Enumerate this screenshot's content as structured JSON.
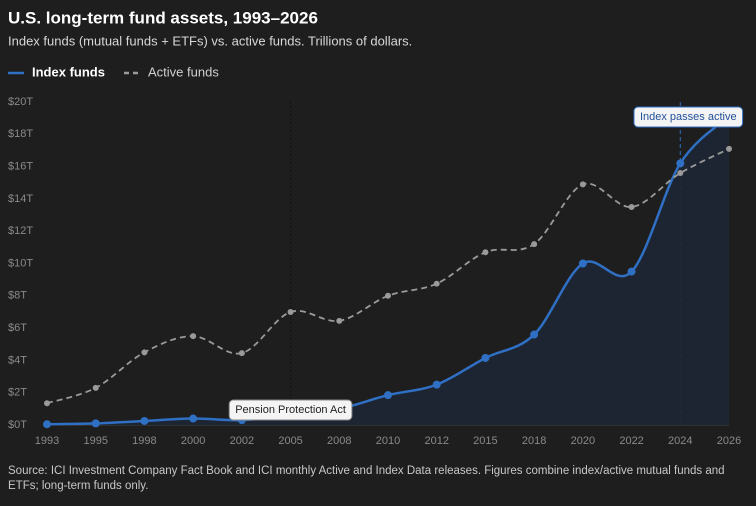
{
  "chart_data": {
    "type": "line",
    "title": "U.S. long-term fund assets, 1993–2026",
    "subtitle": "Index funds (mutual funds + ETFs) vs. active funds. Trillions of dollars.",
    "categories": [
      "1993",
      "1995",
      "1998",
      "2000",
      "2002",
      "2005",
      "2008",
      "2010",
      "2012",
      "2015",
      "2018",
      "2020",
      "2022",
      "2024",
      "2026"
    ],
    "series": [
      {
        "name": "Index funds",
        "color": "#2f6fc4",
        "style": "solid",
        "area": true,
        "values": [
          0.05,
          0.1,
          0.25,
          0.4,
          0.3,
          0.6,
          1.0,
          1.85,
          2.5,
          4.15,
          5.6,
          10.0,
          9.5,
          16.2,
          19.1
        ]
      },
      {
        "name": "Active funds",
        "color": "#9a9a9a",
        "style": "dashed",
        "values": [
          1.35,
          2.3,
          4.5,
          5.5,
          4.45,
          7.0,
          6.45,
          8.0,
          8.75,
          10.7,
          11.2,
          14.9,
          13.5,
          15.6,
          17.1
        ]
      }
    ],
    "ylim": [
      0,
      20
    ],
    "yticks": [
      {
        "value": 0,
        "label": "$0T"
      },
      {
        "value": 2,
        "label": "$2T"
      },
      {
        "value": 4,
        "label": "$4T"
      },
      {
        "value": 6,
        "label": "$6T"
      },
      {
        "value": 8,
        "label": "$8T"
      },
      {
        "value": 10,
        "label": "$10T"
      },
      {
        "value": 12,
        "label": "$12T"
      },
      {
        "value": 14,
        "label": "$14T"
      },
      {
        "value": 16,
        "label": "$16T"
      },
      {
        "value": 18,
        "label": "$18T"
      },
      {
        "value": 20,
        "label": "$20T"
      }
    ],
    "grid": false,
    "annotations": [
      {
        "text": "Pension Protection Act",
        "x": "2005"
      },
      {
        "text": "Index passes active",
        "x": "2024"
      }
    ],
    "source": "Source: ICI Investment Company Fact Book and ICI monthly Active and Index Data releases. Figures combine index/active mutual funds and ETFs; long-term funds only."
  }
}
